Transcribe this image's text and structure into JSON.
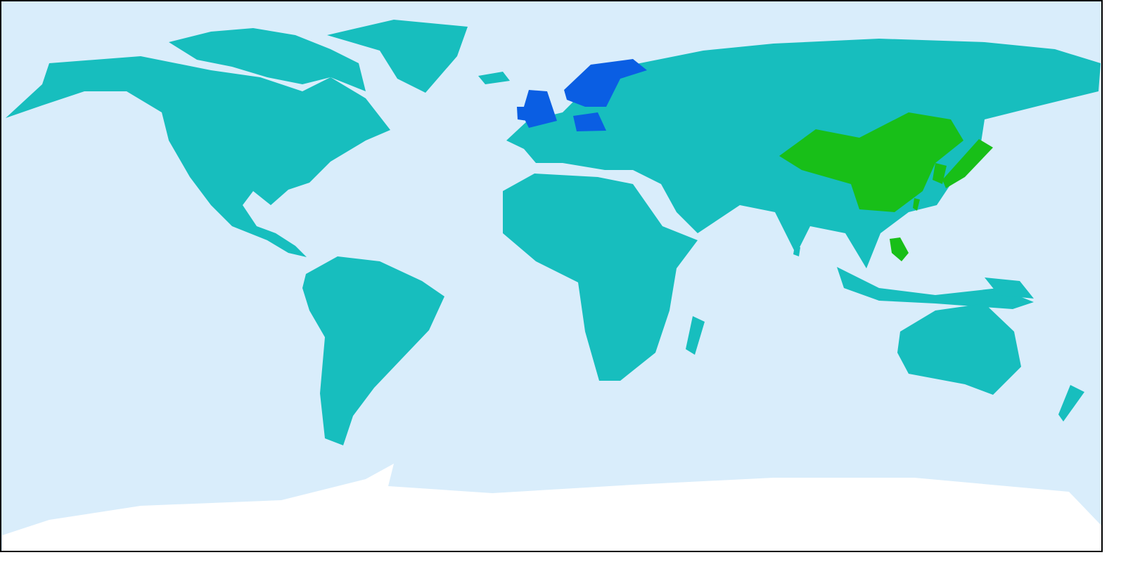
{
  "map": {
    "colors": {
      "ocean": "#d9edfb",
      "land": "#17bebe",
      "antarctica": "#ffffff",
      "group_blue": "#0a5ee3",
      "group_green": "#18bf18",
      "border": "#000000"
    }
  }
}
